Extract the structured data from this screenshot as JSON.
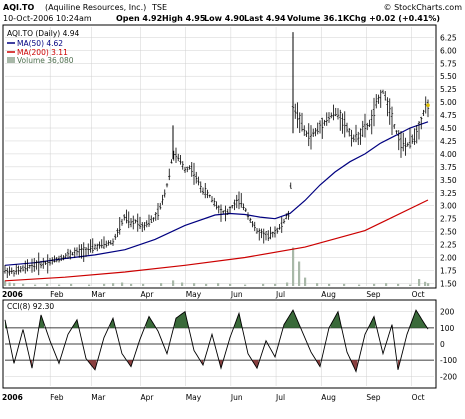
{
  "header": {
    "symbol": "AQI.TO",
    "company": "(Aquiline Resources, Inc.)",
    "exchange": "TSE",
    "stamp": "© StockCharts.com",
    "datetime": "10-Oct-2006 10:24am",
    "quote": {
      "open": "Open 4.92",
      "high": "High 4.95",
      "low": "Low 4.90",
      "last": "Last 4.94",
      "volume": "Volume 36.1K",
      "chg": "Chg +0.02 (+0.41%)"
    }
  },
  "legend": {
    "title": "AQI.TO (Daily) 4.94",
    "ma50": "MA(50) 4.62",
    "ma200": "MA(200) 3.11",
    "volume": "Volume 36,080"
  },
  "cci_legend": "CCI(8) 92.30",
  "colors": {
    "price": "#000000",
    "ma50": "#000080",
    "ma200": "#cc0000",
    "volume": "#a8b8a8",
    "cci_pos": "#3a6a3a",
    "cci_neg": "#8a4040",
    "grid": "#d0d0d0"
  },
  "chart_data": [
    {
      "type": "ohlc",
      "yticks": [
        "1.50",
        "1.75",
        "2.00",
        "2.25",
        "2.50",
        "2.75",
        "3.00",
        "3.25",
        "3.50",
        "3.75",
        "4.00",
        "4.25",
        "4.50",
        "4.75",
        "5.00",
        "5.25",
        "5.50",
        "5.75",
        "6.00",
        "6.25"
      ],
      "xticks": [
        "2006",
        "Feb",
        "Mar",
        "Apr",
        "May",
        "Jun",
        "Jul",
        "Aug",
        "Sep",
        "Oct"
      ],
      "ylim": [
        1.45,
        6.45
      ],
      "grid": true,
      "price_series": [
        [
          0,
          1.75
        ],
        [
          6,
          1.72
        ],
        [
          12,
          1.78
        ],
        [
          18,
          1.85
        ],
        [
          24,
          1.88
        ],
        [
          30,
          1.92
        ],
        [
          36,
          1.98
        ],
        [
          42,
          2.05
        ],
        [
          48,
          2.1
        ],
        [
          54,
          2.15
        ],
        [
          60,
          2.2
        ],
        [
          66,
          2.25
        ],
        [
          72,
          2.3
        ],
        [
          76,
          2.55
        ],
        [
          80,
          2.8
        ],
        [
          84,
          2.65
        ],
        [
          88,
          2.72
        ],
        [
          92,
          2.6
        ],
        [
          96,
          2.7
        ],
        [
          100,
          2.75
        ],
        [
          104,
          3.0
        ],
        [
          108,
          3.4
        ],
        [
          112,
          4.0
        ],
        [
          116,
          3.9
        ],
        [
          120,
          3.7
        ],
        [
          124,
          3.75
        ],
        [
          128,
          3.5
        ],
        [
          132,
          3.3
        ],
        [
          136,
          3.2
        ],
        [
          140,
          3.05
        ],
        [
          144,
          2.9
        ],
        [
          148,
          2.85
        ],
        [
          152,
          3.0
        ],
        [
          156,
          3.1
        ],
        [
          160,
          2.95
        ],
        [
          164,
          2.7
        ],
        [
          168,
          2.5
        ],
        [
          172,
          2.45
        ],
        [
          176,
          2.4
        ],
        [
          180,
          2.5
        ],
        [
          184,
          2.6
        ],
        [
          188,
          2.8
        ],
        [
          190,
          2.85
        ],
        [
          192,
          4.9
        ],
        [
          196,
          4.7
        ],
        [
          200,
          4.4
        ],
        [
          204,
          4.35
        ],
        [
          208,
          4.45
        ],
        [
          212,
          4.6
        ],
        [
          216,
          4.7
        ],
        [
          220,
          4.8
        ],
        [
          224,
          4.7
        ],
        [
          228,
          4.5
        ],
        [
          232,
          4.3
        ],
        [
          236,
          4.35
        ],
        [
          240,
          4.5
        ],
        [
          244,
          4.6
        ],
        [
          248,
          5.0
        ],
        [
          252,
          5.2
        ],
        [
          256,
          4.9
        ],
        [
          260,
          4.5
        ],
        [
          264,
          4.2
        ],
        [
          268,
          4.15
        ],
        [
          272,
          4.3
        ],
        [
          276,
          4.5
        ],
        [
          280,
          4.9
        ],
        [
          282,
          4.94
        ]
      ],
      "ma50_series": [
        [
          0,
          1.85
        ],
        [
          20,
          1.9
        ],
        [
          40,
          1.98
        ],
        [
          60,
          2.05
        ],
        [
          80,
          2.15
        ],
        [
          100,
          2.35
        ],
        [
          120,
          2.62
        ],
        [
          140,
          2.82
        ],
        [
          150,
          2.85
        ],
        [
          160,
          2.83
        ],
        [
          170,
          2.78
        ],
        [
          180,
          2.75
        ],
        [
          190,
          2.85
        ],
        [
          200,
          3.1
        ],
        [
          210,
          3.4
        ],
        [
          220,
          3.65
        ],
        [
          230,
          3.85
        ],
        [
          240,
          4.0
        ],
        [
          250,
          4.2
        ],
        [
          260,
          4.35
        ],
        [
          270,
          4.5
        ],
        [
          282,
          4.62
        ]
      ],
      "ma200_series": [
        [
          0,
          1.55
        ],
        [
          40,
          1.62
        ],
        [
          80,
          1.72
        ],
        [
          120,
          1.85
        ],
        [
          160,
          2.0
        ],
        [
          200,
          2.2
        ],
        [
          240,
          2.52
        ],
        [
          282,
          3.11
        ]
      ],
      "volume_bars": [
        [
          0,
          0.08
        ],
        [
          3,
          0.05
        ],
        [
          6,
          0.04
        ],
        [
          12,
          0.03
        ],
        [
          20,
          0.02
        ],
        [
          28,
          0.03
        ],
        [
          36,
          0.02
        ],
        [
          44,
          0.03
        ],
        [
          56,
          0.02
        ],
        [
          66,
          0.03
        ],
        [
          72,
          0.04
        ],
        [
          78,
          0.05
        ],
        [
          84,
          0.03
        ],
        [
          92,
          0.03
        ],
        [
          104,
          0.04
        ],
        [
          112,
          0.08
        ],
        [
          118,
          0.05
        ],
        [
          126,
          0.04
        ],
        [
          134,
          0.03
        ],
        [
          142,
          0.04
        ],
        [
          150,
          0.03
        ],
        [
          160,
          0.02
        ],
        [
          172,
          0.03
        ],
        [
          180,
          0.03
        ],
        [
          188,
          0.05
        ],
        [
          192,
          0.55
        ],
        [
          196,
          0.35
        ],
        [
          200,
          0.12
        ],
        [
          208,
          0.04
        ],
        [
          216,
          0.03
        ],
        [
          226,
          0.03
        ],
        [
          236,
          0.02
        ],
        [
          246,
          0.03
        ],
        [
          254,
          0.04
        ],
        [
          262,
          0.03
        ],
        [
          270,
          0.02
        ],
        [
          276,
          0.1
        ],
        [
          280,
          0.06
        ],
        [
          282,
          0.04
        ]
      ]
    },
    {
      "type": "line",
      "name": "CCI(8)",
      "yticks": [
        "200",
        "100",
        "0",
        "-100",
        "-200"
      ],
      "ylim": [
        -260,
        260
      ],
      "grid": true,
      "values": [
        [
          0,
          150
        ],
        [
          6,
          -120
        ],
        [
          12,
          90
        ],
        [
          18,
          -150
        ],
        [
          24,
          180
        ],
        [
          30,
          20
        ],
        [
          36,
          -120
        ],
        [
          42,
          60
        ],
        [
          48,
          150
        ],
        [
          54,
          -90
        ],
        [
          60,
          -160
        ],
        [
          66,
          40
        ],
        [
          72,
          160
        ],
        [
          78,
          -60
        ],
        [
          84,
          -140
        ],
        [
          90,
          30
        ],
        [
          96,
          170
        ],
        [
          102,
          80
        ],
        [
          108,
          -60
        ],
        [
          114,
          160
        ],
        [
          120,
          200
        ],
        [
          126,
          -40
        ],
        [
          132,
          -130
        ],
        [
          138,
          60
        ],
        [
          144,
          -150
        ],
        [
          150,
          40
        ],
        [
          156,
          190
        ],
        [
          162,
          -60
        ],
        [
          168,
          -150
        ],
        [
          174,
          20
        ],
        [
          180,
          -80
        ],
        [
          186,
          120
        ],
        [
          192,
          210
        ],
        [
          198,
          80
        ],
        [
          204,
          -50
        ],
        [
          210,
          -140
        ],
        [
          216,
          100
        ],
        [
          222,
          200
        ],
        [
          228,
          -50
        ],
        [
          234,
          -170
        ],
        [
          240,
          60
        ],
        [
          246,
          170
        ],
        [
          252,
          -60
        ],
        [
          258,
          120
        ],
        [
          262,
          -160
        ],
        [
          268,
          60
        ],
        [
          274,
          210
        ],
        [
          278,
          150
        ],
        [
          282,
          92
        ]
      ]
    }
  ]
}
